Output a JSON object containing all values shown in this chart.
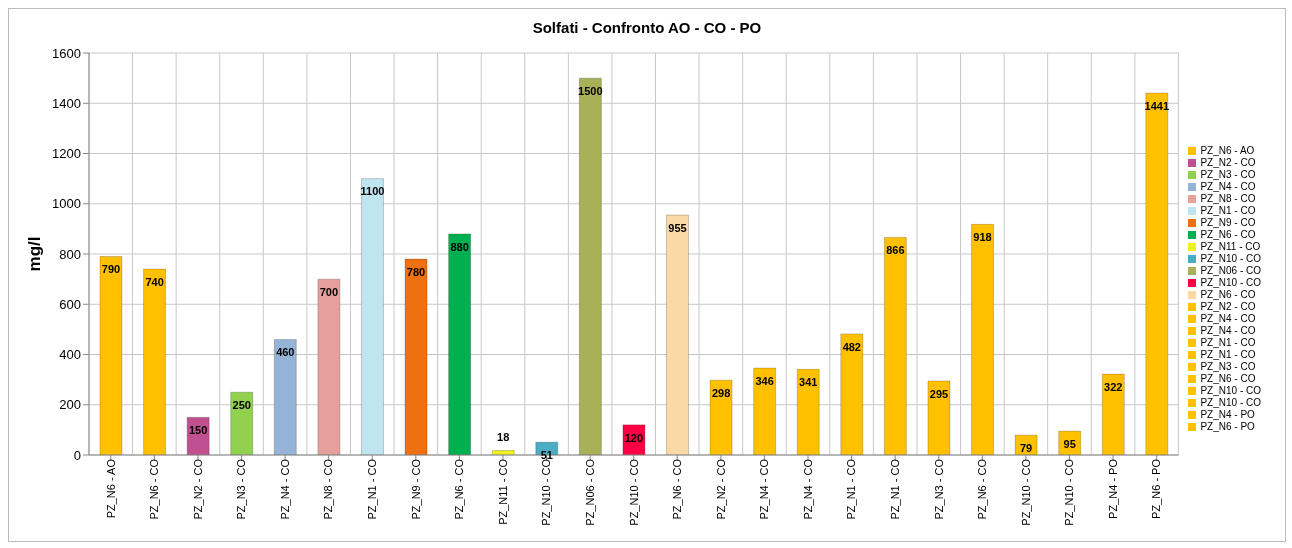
{
  "chart_data": {
    "type": "bar",
    "title": "Solfati - Confronto AO - CO - PO",
    "ylabel": "mg/l",
    "categories": [
      "PZ_N6 - AO",
      "PZ_N6 - CO",
      "PZ_N2 - CO",
      "PZ_N3 - CO",
      "PZ_N4 - CO",
      "PZ_N8 - CO",
      "PZ_N1 - CO",
      "PZ_N9 - CO",
      "PZ_N6 - CO",
      "PZ_N11 - CO",
      "PZ_N10 - CO",
      "PZ_N06 - CO",
      "PZ_N10 - CO",
      "PZ_N6 - CO",
      "PZ_N2 - CO",
      "PZ_N4 - CO",
      "PZ_N4 - CO",
      "PZ_N1 - CO",
      "PZ_N1 - CO",
      "PZ_N3 - CO",
      "PZ_N6 - CO",
      "PZ_N10 - CO",
      "PZ_N10 - CO",
      "PZ_N4 - PO",
      "PZ_N6 - PO"
    ],
    "series": [
      {
        "name": "PZ_N6 - AO",
        "color": "#ffc000",
        "values": [
          790,
          740,
          null,
          null,
          null,
          null,
          null,
          null,
          null,
          null,
          null,
          null,
          null,
          null,
          null,
          null,
          null,
          null,
          null,
          null,
          null,
          null,
          null,
          null,
          null
        ]
      },
      {
        "name": "PZ_N2 - CO",
        "color": "#c0508f",
        "values": [
          null,
          null,
          150,
          null,
          null,
          null,
          null,
          null,
          null,
          null,
          null,
          null,
          null,
          null,
          null,
          null,
          null,
          null,
          null,
          null,
          null,
          null,
          null,
          null,
          null
        ]
      },
      {
        "name": "PZ_N3 - CO",
        "color": "#92d050",
        "values": [
          null,
          null,
          null,
          250,
          null,
          null,
          null,
          null,
          null,
          null,
          null,
          null,
          null,
          null,
          null,
          null,
          null,
          null,
          null,
          null,
          null,
          null,
          null,
          null,
          null
        ]
      },
      {
        "name": "PZ_N4 - CO",
        "color": "#95b3d7",
        "values": [
          null,
          null,
          null,
          null,
          460,
          null,
          null,
          null,
          null,
          null,
          null,
          null,
          null,
          null,
          null,
          null,
          null,
          null,
          null,
          null,
          null,
          null,
          null,
          null,
          null
        ]
      },
      {
        "name": "PZ_N8 - CO",
        "color": "#e6a09c",
        "values": [
          null,
          null,
          null,
          null,
          null,
          700,
          null,
          null,
          null,
          null,
          null,
          null,
          null,
          null,
          null,
          null,
          null,
          null,
          null,
          null,
          null,
          null,
          null,
          null,
          null
        ]
      },
      {
        "name": "PZ_N1 - CO",
        "color": "#bfe6f0",
        "values": [
          null,
          null,
          null,
          null,
          null,
          null,
          1100,
          null,
          null,
          null,
          null,
          null,
          null,
          null,
          null,
          null,
          null,
          null,
          null,
          null,
          null,
          null,
          null,
          null,
          null
        ]
      },
      {
        "name": "PZ_N9 - CO",
        "color": "#ee7010",
        "values": [
          null,
          null,
          null,
          null,
          null,
          null,
          null,
          780,
          null,
          null,
          null,
          null,
          null,
          null,
          null,
          null,
          null,
          null,
          null,
          null,
          null,
          null,
          null,
          null,
          null
        ]
      },
      {
        "name": "PZ_N6 - CO",
        "color": "#00b050",
        "values": [
          null,
          null,
          null,
          null,
          null,
          null,
          null,
          null,
          880,
          null,
          null,
          null,
          null,
          null,
          null,
          null,
          null,
          null,
          null,
          null,
          null,
          null,
          null,
          null,
          null
        ]
      },
      {
        "name": "PZ_N11 - CO",
        "color": "#f0f020",
        "values": [
          null,
          null,
          null,
          null,
          null,
          null,
          null,
          null,
          null,
          18,
          null,
          null,
          null,
          null,
          null,
          null,
          null,
          null,
          null,
          null,
          null,
          null,
          null,
          null,
          null
        ]
      },
      {
        "name": "PZ_N10 - CO",
        "color": "#4bacc6",
        "values": [
          null,
          null,
          null,
          null,
          null,
          null,
          null,
          null,
          null,
          null,
          51,
          null,
          null,
          null,
          null,
          null,
          null,
          null,
          null,
          null,
          null,
          null,
          null,
          null,
          null
        ]
      },
      {
        "name": "PZ_N06 - CO",
        "color": "#a8b058",
        "values": [
          null,
          null,
          null,
          null,
          null,
          null,
          null,
          null,
          null,
          null,
          null,
          1500,
          null,
          null,
          null,
          null,
          null,
          null,
          null,
          null,
          null,
          null,
          null,
          null,
          null
        ]
      },
      {
        "name": "PZ_N10 - CO",
        "color": "#ff0044",
        "values": [
          null,
          null,
          null,
          null,
          null,
          null,
          null,
          null,
          null,
          null,
          null,
          null,
          120,
          null,
          null,
          null,
          null,
          null,
          null,
          null,
          null,
          null,
          null,
          null,
          null
        ]
      },
      {
        "name": "PZ_N6 - CO",
        "color": "#fad9a6",
        "values": [
          null,
          null,
          null,
          null,
          null,
          null,
          null,
          null,
          null,
          null,
          null,
          null,
          null,
          955,
          null,
          null,
          null,
          null,
          null,
          null,
          null,
          null,
          null,
          null,
          null
        ]
      },
      {
        "name": "PZ_N2 - CO",
        "color": "#ffc000",
        "values": [
          null,
          null,
          null,
          null,
          null,
          null,
          null,
          null,
          null,
          null,
          null,
          null,
          null,
          null,
          298,
          null,
          null,
          null,
          null,
          null,
          null,
          null,
          null,
          null,
          null
        ]
      },
      {
        "name": "PZ_N4 - CO",
        "color": "#ffc000",
        "values": [
          null,
          null,
          null,
          null,
          null,
          null,
          null,
          null,
          null,
          null,
          null,
          null,
          null,
          null,
          null,
          346,
          null,
          null,
          null,
          null,
          null,
          null,
          null,
          null,
          null
        ]
      },
      {
        "name": "PZ_N4 - CO",
        "color": "#ffc000",
        "values": [
          null,
          null,
          null,
          null,
          null,
          null,
          null,
          null,
          null,
          null,
          null,
          null,
          null,
          null,
          null,
          null,
          341,
          null,
          null,
          null,
          null,
          null,
          null,
          null,
          null
        ]
      },
      {
        "name": "PZ_N1 - CO",
        "color": "#ffc000",
        "values": [
          null,
          null,
          null,
          null,
          null,
          null,
          null,
          null,
          null,
          null,
          null,
          null,
          null,
          null,
          null,
          null,
          null,
          482,
          null,
          null,
          null,
          null,
          null,
          null,
          null
        ]
      },
      {
        "name": "PZ_N1 - CO",
        "color": "#ffc000",
        "values": [
          null,
          null,
          null,
          null,
          null,
          null,
          null,
          null,
          null,
          null,
          null,
          null,
          null,
          null,
          null,
          null,
          null,
          null,
          866,
          null,
          null,
          null,
          null,
          null,
          null
        ]
      },
      {
        "name": "PZ_N3 - CO",
        "color": "#ffc000",
        "values": [
          null,
          null,
          null,
          null,
          null,
          null,
          null,
          null,
          null,
          null,
          null,
          null,
          null,
          null,
          null,
          null,
          null,
          null,
          null,
          295,
          null,
          null,
          null,
          null,
          null
        ]
      },
      {
        "name": "PZ_N6 - CO",
        "color": "#ffc000",
        "values": [
          null,
          null,
          null,
          null,
          null,
          null,
          null,
          null,
          null,
          null,
          null,
          null,
          null,
          null,
          null,
          null,
          null,
          null,
          null,
          null,
          918,
          null,
          null,
          null,
          null
        ]
      },
      {
        "name": "PZ_N10 - CO",
        "color": "#ffc000",
        "values": [
          null,
          null,
          null,
          null,
          null,
          null,
          null,
          null,
          null,
          null,
          null,
          null,
          null,
          null,
          null,
          null,
          null,
          null,
          null,
          null,
          null,
          79,
          null,
          null,
          null
        ]
      },
      {
        "name": "PZ_N10 - CO",
        "color": "#ffc000",
        "values": [
          null,
          null,
          null,
          null,
          null,
          null,
          null,
          null,
          null,
          null,
          null,
          null,
          null,
          null,
          null,
          null,
          null,
          null,
          null,
          null,
          null,
          null,
          95,
          null,
          null
        ]
      },
      {
        "name": "PZ_N4 - PO",
        "color": "#ffc000",
        "values": [
          null,
          null,
          null,
          null,
          null,
          null,
          null,
          null,
          null,
          null,
          null,
          null,
          null,
          null,
          null,
          null,
          null,
          null,
          null,
          null,
          null,
          null,
          null,
          322,
          null
        ]
      },
      {
        "name": "PZ_N6 - PO",
        "color": "#ffc000",
        "values": [
          null,
          null,
          null,
          null,
          null,
          null,
          null,
          null,
          null,
          null,
          null,
          null,
          null,
          null,
          null,
          null,
          null,
          null,
          null,
          null,
          null,
          null,
          null,
          null,
          1441
        ]
      }
    ],
    "ylim": [
      0,
      1600
    ],
    "yticks": [
      0,
      200,
      400,
      600,
      800,
      1000,
      1200,
      1400,
      1600
    ],
    "grid": true,
    "legend": "right",
    "data_labels": true
  }
}
